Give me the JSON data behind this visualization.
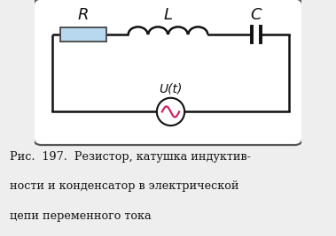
{
  "fig_width": 3.79,
  "fig_height": 2.67,
  "dpi": 100,
  "bg_color": "#eeeeee",
  "box_bg": "#ffffff",
  "resistor_fill": "#b8d8f0",
  "resistor_border": "#444444",
  "wire_color": "#111111",
  "label_R": "R",
  "label_L": "L",
  "label_C": "C",
  "label_U": "U(t)",
  "caption_line1": "Рис.  197.  Резистор, катушка индуктив-",
  "caption_line2": "ности и конденсатор в электрической",
  "caption_line3": "цепи переменного тока",
  "caption_fontsize": 9.2,
  "wire_lw": 1.8
}
